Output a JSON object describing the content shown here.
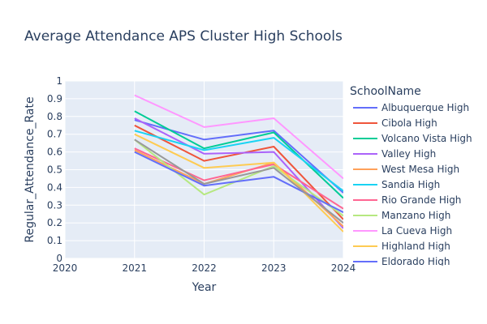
{
  "chart_data": {
    "type": "line",
    "title": "Average Attendance APS Cluster High Schools",
    "xlabel": "Year",
    "ylabel": "Regular_Attendance_Rate",
    "xlim": [
      2020,
      2024
    ],
    "ylim": [
      0,
      1
    ],
    "x_ticks": [
      "2020",
      "2021",
      "2022",
      "2023",
      "2024"
    ],
    "y_ticks": [
      "0",
      "0.1",
      "0.2",
      "0.3",
      "0.4",
      "0.5",
      "0.6",
      "0.7",
      "0.8",
      "0.9",
      "1"
    ],
    "grid": true,
    "legend_title": "SchoolName",
    "legend_position": "right",
    "x": [
      2021,
      2022,
      2023,
      2024
    ],
    "series": [
      {
        "name": "Albuquerque High",
        "color": "#636efa",
        "values": [
          0.78,
          0.67,
          0.72,
          0.37
        ]
      },
      {
        "name": "Cibola High",
        "color": "#ef553b",
        "values": [
          0.75,
          0.55,
          0.63,
          0.22
        ]
      },
      {
        "name": "Volcano Vista High",
        "color": "#00cc96",
        "values": [
          0.83,
          0.62,
          0.71,
          0.34
        ]
      },
      {
        "name": "Valley High",
        "color": "#ab63fa",
        "values": [
          0.79,
          0.59,
          0.6,
          0.17
        ]
      },
      {
        "name": "West Mesa High",
        "color": "#ffa15a",
        "values": [
          0.61,
          0.42,
          0.54,
          0.18
        ]
      },
      {
        "name": "Sandia High",
        "color": "#19d3f3",
        "values": [
          0.72,
          0.61,
          0.68,
          0.38
        ]
      },
      {
        "name": "Rio Grande High",
        "color": "#ff6692",
        "values": [
          0.62,
          0.44,
          0.53,
          0.28
        ]
      },
      {
        "name": "Manzano High",
        "color": "#b6e880",
        "values": [
          0.67,
          0.36,
          0.52,
          0.24
        ]
      },
      {
        "name": "La Cueva High",
        "color": "#ff97ff",
        "values": [
          0.92,
          0.74,
          0.79,
          0.45
        ]
      },
      {
        "name": "Highland High",
        "color": "#fecb52",
        "values": [
          0.7,
          0.51,
          0.54,
          0.15
        ]
      },
      {
        "name": "Eldorado High",
        "color": "#636efa",
        "values": [
          0.6,
          0.41,
          0.46,
          0.26
        ]
      },
      {
        "name": "",
        "color": "#999999",
        "values": [
          0.67,
          0.42,
          0.51,
          0.2
        ]
      }
    ]
  }
}
